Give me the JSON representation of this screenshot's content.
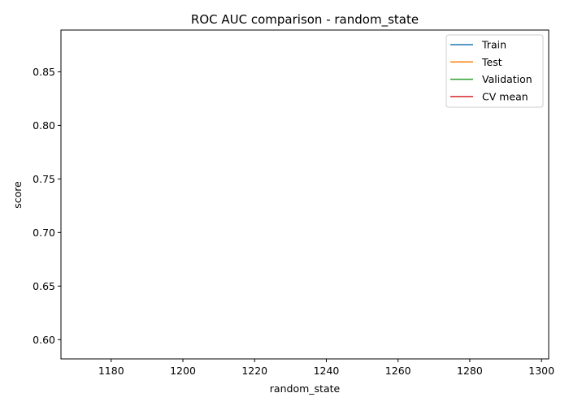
{
  "chart_data": {
    "type": "line",
    "title": "ROC AUC comparison - random_state",
    "xlabel": "random_state",
    "ylabel": "score",
    "xlim": [
      1166,
      1302
    ],
    "ylim": [
      0.582,
      0.889
    ],
    "x_ticks": [
      1180,
      1200,
      1220,
      1240,
      1260,
      1280,
      1300
    ],
    "y_ticks": [
      0.6,
      0.65,
      0.7,
      0.75,
      0.8,
      0.85
    ],
    "x_tick_labels": [
      "1180",
      "1200",
      "1220",
      "1240",
      "1260",
      "1280",
      "1300"
    ],
    "y_tick_labels": [
      "0.60",
      "0.65",
      "0.70",
      "0.75",
      "0.80",
      "0.85"
    ],
    "grid": false,
    "legend_position": "top-right",
    "series": [
      {
        "name": "Train",
        "color": "#1f77b4",
        "x": [],
        "y": []
      },
      {
        "name": "Test",
        "color": "#ff7f0e",
        "x": [],
        "y": []
      },
      {
        "name": "Validation",
        "color": "#2ca02c",
        "x": [],
        "y": []
      },
      {
        "name": "CV mean",
        "color": "#d62728",
        "x": [],
        "y": []
      }
    ]
  }
}
